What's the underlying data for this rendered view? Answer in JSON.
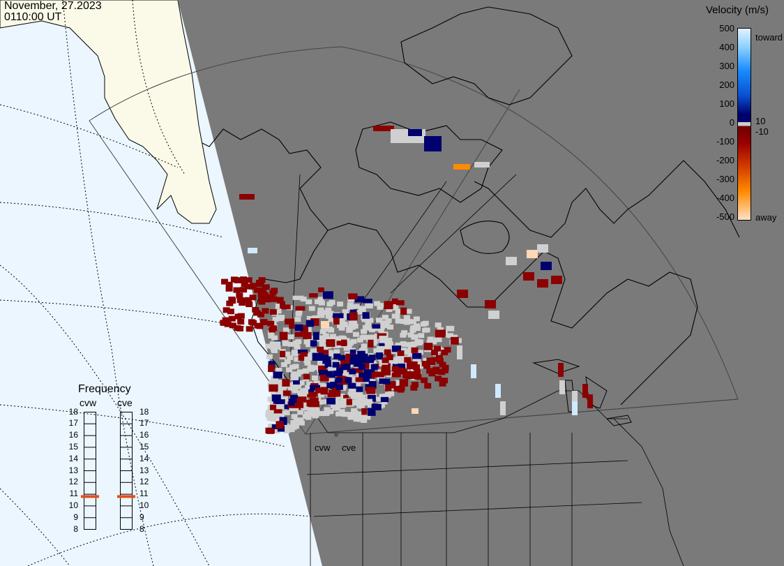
{
  "header": {
    "date": "November, 27.2023",
    "time": "0110:00 UT"
  },
  "colorbar": {
    "title": "Velocity (m/s)",
    "ticks": [
      "500",
      "400",
      "300",
      "200",
      "100",
      "0",
      "-100",
      "-200",
      "-300",
      "-400",
      "-500"
    ],
    "side_labels": [
      "toward",
      "10",
      "-10",
      "away"
    ],
    "colors": {
      "toward_light": "#cfeaff",
      "toward_mid": "#1a8cff",
      "toward_dark": "#0a2aa0",
      "toward_navy": "#00006e",
      "away_dark": "#8b0000",
      "away_mid": "#d23c00",
      "away_orange": "#ff8a00",
      "away_light": "#ffd7b5",
      "ground_scatter": "#d0d0d0"
    }
  },
  "map": {
    "radar_sites": [
      "cvw",
      "cve"
    ],
    "colors": {
      "ocean": "#ebf6ff",
      "night": "#7a7a7a",
      "land_day": "#fbfae9"
    }
  },
  "frequency": {
    "title": "Frequency",
    "radars": [
      "cvw",
      "cve"
    ],
    "scale": [
      "18",
      "17",
      "16",
      "15",
      "14",
      "13",
      "12",
      "11",
      "10",
      "9",
      "8"
    ],
    "values_mhz": [
      10.8,
      10.8
    ],
    "marker_color": "#e0501e"
  }
}
